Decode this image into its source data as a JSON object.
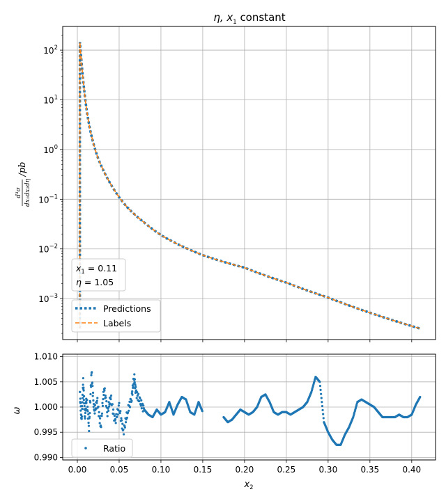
{
  "chart_data": [
    {
      "type": "line",
      "title_math": "η, x",
      "title_sub": "1",
      "title_rest": " constant",
      "ylabel_main": "/pb",
      "ylabel_num": "d³σ",
      "ylabel_den": "dx₁dx₂dη",
      "yscale": "log",
      "ylim": [
        0.00015,
        300
      ],
      "xlim": [
        -0.0175,
        0.4285
      ],
      "ytick_mantissa": "10",
      "yticks": [
        {
          "value": 0.001,
          "exp": "−3"
        },
        {
          "value": 0.01,
          "exp": "−2"
        },
        {
          "value": 0.1,
          "exp": "−1"
        },
        {
          "value": 1,
          "exp": "0"
        },
        {
          "value": 10,
          "exp": "1"
        },
        {
          "value": 100,
          "exp": "2"
        }
      ],
      "grid": true,
      "annotation": {
        "x1_symbol": "x",
        "x1_sub": "1",
        "x1_value": " = 0.11",
        "eta_symbol": "η",
        "eta_value": " = 1.05"
      },
      "legend_position": "lower-left",
      "series": [
        {
          "name": "Predictions",
          "style": "dotted",
          "color": "#1f77b4",
          "x": [
            0.003,
            0.005,
            0.008,
            0.012,
            0.016,
            0.02,
            0.025,
            0.03,
            0.04,
            0.05,
            0.06,
            0.07,
            0.08,
            0.1,
            0.12,
            0.15,
            0.2,
            0.25,
            0.3,
            0.35,
            0.41
          ],
          "y": [
            150,
            60,
            17,
            5,
            2.2,
            1.2,
            0.65,
            0.42,
            0.2,
            0.11,
            0.068,
            0.047,
            0.034,
            0.019,
            0.0125,
            0.0075,
            0.0042,
            0.0021,
            0.00105,
            0.00052,
            0.00025
          ]
        },
        {
          "name": "Labels",
          "style": "dashed",
          "color": "#ff7f0e",
          "x": [
            0.003,
            0.005,
            0.008,
            0.012,
            0.016,
            0.02,
            0.025,
            0.03,
            0.04,
            0.05,
            0.06,
            0.07,
            0.08,
            0.1,
            0.12,
            0.15,
            0.2,
            0.25,
            0.3,
            0.35,
            0.41
          ],
          "y": [
            150,
            60,
            17,
            5,
            2.2,
            1.2,
            0.65,
            0.42,
            0.2,
            0.11,
            0.068,
            0.047,
            0.034,
            0.019,
            0.0125,
            0.0075,
            0.0042,
            0.0021,
            0.00105,
            0.00052,
            0.00025
          ]
        }
      ]
    },
    {
      "type": "scatter",
      "ylabel": "ω",
      "xlabel_symbol": "x",
      "xlabel_sub": "2",
      "xlim": [
        -0.0175,
        0.4285
      ],
      "ylim": [
        0.9895,
        1.0105
      ],
      "xticks": [
        0.0,
        0.05,
        0.1,
        0.15,
        0.2,
        0.25,
        0.3,
        0.35,
        0.4
      ],
      "xtick_labels": [
        "0.00",
        "0.05",
        "0.10",
        "0.15",
        "0.20",
        "0.25",
        "0.30",
        "0.35",
        "0.40"
      ],
      "yticks": [
        0.99,
        0.995,
        1.0,
        1.005,
        1.01
      ],
      "ytick_labels": [
        "0.990",
        "0.995",
        "1.000",
        "1.005",
        "1.010"
      ],
      "grid": true,
      "legend_position": "lower-left",
      "series": [
        {
          "name": "Ratio",
          "color": "#1f77b4",
          "marker": "dot",
          "x": [
            0.003,
            0.005,
            0.007,
            0.009,
            0.011,
            0.014,
            0.017,
            0.02,
            0.024,
            0.028,
            0.032,
            0.036,
            0.04,
            0.045,
            0.05,
            0.055,
            0.06,
            0.065,
            0.068,
            0.07,
            0.075,
            0.08,
            0.085,
            0.09,
            0.095,
            0.1,
            0.105,
            0.11,
            0.115,
            0.12,
            0.125,
            0.13,
            0.135,
            0.14,
            0.145,
            0.15,
            0.175,
            0.18,
            0.185,
            0.19,
            0.195,
            0.2,
            0.205,
            0.21,
            0.215,
            0.22,
            0.225,
            0.23,
            0.235,
            0.24,
            0.245,
            0.25,
            0.255,
            0.26,
            0.265,
            0.27,
            0.275,
            0.28,
            0.285,
            0.29,
            0.295,
            0.3,
            0.305,
            0.31,
            0.315,
            0.32,
            0.325,
            0.33,
            0.335,
            0.34,
            0.345,
            0.35,
            0.355,
            0.36,
            0.365,
            0.37,
            0.375,
            0.38,
            0.385,
            0.39,
            0.395,
            0.4,
            0.405,
            0.41
          ],
          "y": [
            1.003,
            0.997,
            1.005,
            0.998,
            1.002,
            0.996,
            1.007,
            0.999,
            1.001,
            0.996,
            1.004,
            0.999,
            1.002,
            0.997,
            1.0,
            0.995,
            0.999,
            1.002,
            1.006,
            1.003,
            1.001,
            0.9995,
            0.9985,
            0.998,
            0.9995,
            0.9985,
            0.999,
            1.001,
            0.9985,
            1.0005,
            1.002,
            1.0015,
            0.999,
            0.9985,
            1.001,
            0.999,
            0.998,
            0.997,
            0.9975,
            0.9985,
            0.9995,
            0.999,
            0.9985,
            0.999,
            1.0,
            1.002,
            1.0025,
            1.001,
            0.999,
            0.9985,
            0.999,
            0.999,
            0.9985,
            0.999,
            0.9995,
            1.0,
            1.001,
            1.003,
            1.006,
            1.005,
            0.997,
            0.995,
            0.9935,
            0.9925,
            0.9925,
            0.9945,
            0.996,
            0.998,
            1.001,
            1.0015,
            1.001,
            1.0005,
            1.0,
            0.999,
            0.998,
            0.998,
            0.998,
            0.998,
            0.9985,
            0.998,
            0.998,
            0.9985,
            1.0005,
            1.002
          ]
        }
      ]
    }
  ]
}
